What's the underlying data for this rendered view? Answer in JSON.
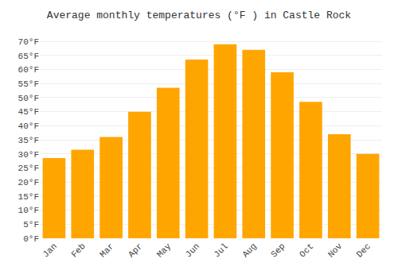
{
  "chart_data": {
    "type": "bar",
    "title": "Average monthly temperatures (°F ) in Castle Rock",
    "categories": [
      "Jan",
      "Feb",
      "Mar",
      "Apr",
      "May",
      "Jun",
      "Jul",
      "Aug",
      "Sep",
      "Oct",
      "Nov",
      "Dec"
    ],
    "values": [
      28.5,
      31.5,
      36.0,
      45.0,
      53.5,
      63.5,
      69.0,
      67.0,
      59.0,
      48.5,
      37.0,
      30.0
    ],
    "color": "#FFA500",
    "ylim": [
      0,
      72
    ],
    "yticks": [
      {
        "value": 0,
        "label": "0°F"
      },
      {
        "value": 5,
        "label": "5°F"
      },
      {
        "value": 10,
        "label": "10°F"
      },
      {
        "value": 15,
        "label": "15°F"
      },
      {
        "value": 20,
        "label": "20°F"
      },
      {
        "value": 25,
        "label": "25°F"
      },
      {
        "value": 30,
        "label": "30°F"
      },
      {
        "value": 35,
        "label": "35°F"
      },
      {
        "value": 40,
        "label": "40°F"
      },
      {
        "value": 45,
        "label": "45°F"
      },
      {
        "value": 50,
        "label": "50°F"
      },
      {
        "value": 55,
        "label": "55°F"
      },
      {
        "value": 60,
        "label": "60°F"
      },
      {
        "value": 65,
        "label": "65°F"
      },
      {
        "value": 70,
        "label": "70°F"
      }
    ],
    "grid": true
  }
}
